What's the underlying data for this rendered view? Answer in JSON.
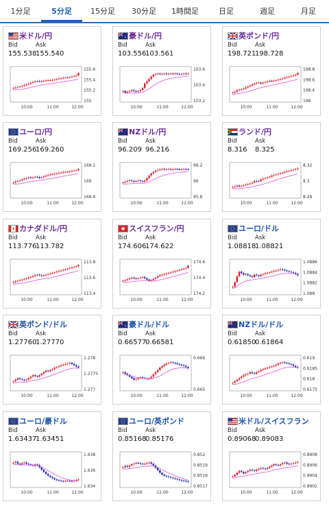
{
  "tabs": [
    "1分足",
    "5分足",
    "15分足",
    "30分足",
    "1時間足",
    "日足",
    "週足",
    "月足"
  ],
  "active_tab": 1,
  "labels": {
    "bid": "Bid",
    "ask": "Ask"
  },
  "colors": {
    "up": "#d9202a",
    "down": "#1c2aa8",
    "ma": "#e060e0",
    "pair_purple": "#6a2a9a",
    "pair_blue": "#1a55b0",
    "accent": "#1f5fae"
  },
  "cards": [
    {
      "pair": "米ドル/円",
      "pair_color": "purple",
      "flag": "us-flag",
      "bid": "155.538",
      "ask": "155.540",
      "y_ticks": [
        "155.6",
        "155.4",
        "155.2",
        "155"
      ],
      "x_ticks": [
        "10:00",
        "11:00",
        "12:00"
      ],
      "trend": [
        0.4,
        0.42,
        0.44,
        0.45,
        0.47,
        0.5,
        0.52,
        0.54,
        0.57,
        0.6,
        0.62,
        0.63,
        0.62,
        0.63,
        0.64,
        0.65,
        0.66,
        0.66,
        0.67,
        0.68,
        0.7,
        0.72,
        0.73,
        0.74,
        0.74,
        0.75,
        0.76,
        0.78,
        0.8,
        0.82,
        0.9
      ]
    },
    {
      "pair": "豪ドル/円",
      "pair_color": "purple",
      "flag": "au-flag",
      "bid": "103.556",
      "ask": "103.561",
      "y_ticks": [
        "103.6",
        "103.4",
        "103.2"
      ],
      "x_ticks": [
        "10:00",
        "11:00",
        "12:00"
      ],
      "trend": [
        0.3,
        0.25,
        0.28,
        0.3,
        0.33,
        0.3,
        0.28,
        0.3,
        0.34,
        0.4,
        0.55,
        0.62,
        0.7,
        0.78,
        0.84,
        0.86,
        0.88,
        0.86,
        0.87,
        0.88,
        0.86,
        0.87,
        0.88,
        0.87,
        0.88,
        0.87,
        0.86,
        0.87,
        0.88,
        0.87,
        0.88
      ]
    },
    {
      "pair": "英ポンド/円",
      "pair_color": "purple",
      "flag": "gb-flag",
      "bid": "198.721",
      "ask": "198.728",
      "y_ticks": [
        "198.8",
        "198.6",
        "198.4",
        "198"
      ],
      "x_ticks": [
        "10:00",
        "11:00",
        "12:00"
      ],
      "trend": [
        0.25,
        0.28,
        0.33,
        0.35,
        0.36,
        0.38,
        0.42,
        0.45,
        0.48,
        0.52,
        0.55,
        0.57,
        0.58,
        0.55,
        0.58,
        0.6,
        0.62,
        0.64,
        0.63,
        0.65,
        0.66,
        0.68,
        0.7,
        0.72,
        0.74,
        0.76,
        0.78,
        0.8,
        0.82,
        0.84,
        0.9
      ]
    },
    {
      "pair": "ユーロ/円",
      "pair_color": "purple",
      "flag": "eu-flag",
      "bid": "169.256",
      "ask": "169.260",
      "y_ticks": [
        "169.2",
        "169",
        "168.8"
      ],
      "x_ticks": [
        "10:00",
        "11:00",
        "12:00"
      ],
      "trend": [
        0.45,
        0.48,
        0.5,
        0.52,
        0.55,
        0.58,
        0.6,
        0.62,
        0.6,
        0.62,
        0.64,
        0.63,
        0.6,
        0.62,
        0.65,
        0.68,
        0.7,
        0.72,
        0.73,
        0.74,
        0.75,
        0.77,
        0.78,
        0.8,
        0.8,
        0.81,
        0.82,
        0.84,
        0.85,
        0.86,
        0.9
      ]
    },
    {
      "pair": "NZドル/円",
      "pair_color": "purple",
      "flag": "nz-flag",
      "bid": "96.209",
      "ask": "96.216",
      "y_ticks": [
        "96.2",
        "96",
        "95.8"
      ],
      "x_ticks": [
        "10:00",
        "11:00",
        "12:00"
      ],
      "trend": [
        0.45,
        0.48,
        0.5,
        0.52,
        0.5,
        0.48,
        0.5,
        0.52,
        0.5,
        0.48,
        0.52,
        0.6,
        0.68,
        0.75,
        0.8,
        0.84,
        0.86,
        0.88,
        0.9,
        0.88,
        0.89,
        0.9,
        0.88,
        0.89,
        0.9,
        0.89,
        0.88,
        0.89,
        0.9,
        0.89,
        0.88
      ]
    },
    {
      "pair": "ランド/円",
      "pair_color": "purple",
      "flag": "za-flag",
      "bid": "8.316",
      "ask": "8.325",
      "y_ticks": [
        "8.32",
        "8.3",
        "8.28"
      ],
      "x_ticks": [
        "10:00",
        "11:00",
        "12:00"
      ],
      "trend": [
        0.3,
        0.32,
        0.35,
        0.32,
        0.34,
        0.36,
        0.38,
        0.4,
        0.42,
        0.45,
        0.5,
        0.48,
        0.5,
        0.55,
        0.58,
        0.6,
        0.62,
        0.64,
        0.68,
        0.7,
        0.72,
        0.74,
        0.76,
        0.78,
        0.8,
        0.82,
        0.84,
        0.86,
        0.88,
        0.9,
        0.92
      ]
    },
    {
      "pair": "カナダドル/円",
      "pair_color": "purple",
      "flag": "ca-flag",
      "bid": "113.776",
      "ask": "113.782",
      "y_ticks": [
        "113.8",
        "113.6",
        "113.4"
      ],
      "x_ticks": [
        "10:00",
        "11:00",
        "12:00"
      ],
      "trend": [
        0.35,
        0.38,
        0.4,
        0.42,
        0.44,
        0.46,
        0.48,
        0.5,
        0.52,
        0.55,
        0.58,
        0.6,
        0.58,
        0.56,
        0.58,
        0.6,
        0.62,
        0.64,
        0.66,
        0.68,
        0.7,
        0.72,
        0.74,
        0.76,
        0.78,
        0.8,
        0.82,
        0.84,
        0.86,
        0.88,
        0.92
      ]
    },
    {
      "pair": "スイスフラン/円",
      "pair_color": "purple",
      "flag": "ch-flag",
      "bid": "174.606",
      "ask": "174.622",
      "y_ticks": [
        "174.6",
        "174.4",
        "174.2"
      ],
      "x_ticks": [
        "10:00",
        "11:00",
        "12:00"
      ],
      "trend": [
        0.4,
        0.42,
        0.45,
        0.48,
        0.5,
        0.48,
        0.46,
        0.48,
        0.5,
        0.52,
        0.48,
        0.44,
        0.4,
        0.42,
        0.46,
        0.5,
        0.55,
        0.58,
        0.6,
        0.62,
        0.64,
        0.66,
        0.68,
        0.7,
        0.72,
        0.74,
        0.76,
        0.78,
        0.8,
        0.82,
        0.9
      ]
    },
    {
      "pair": "ユーロ/ドル",
      "pair_color": "blue",
      "flag": "eu-flag",
      "bid": "1.08818",
      "ask": "1.08821",
      "y_ticks": [
        "1.0886",
        "1.0884",
        "1.0882",
        "1.088"
      ],
      "x_ticks": [
        "10:00",
        "11:00",
        "12:00"
      ],
      "trend": [
        0.2,
        0.35,
        0.55,
        0.7,
        0.65,
        0.6,
        0.62,
        0.58,
        0.55,
        0.52,
        0.6,
        0.58,
        0.55,
        0.6,
        0.62,
        0.65,
        0.66,
        0.68,
        0.7,
        0.72,
        0.74,
        0.76,
        0.78,
        0.76,
        0.74,
        0.72,
        0.7,
        0.68,
        0.66,
        0.62,
        0.58
      ]
    },
    {
      "pair": "英ポンド/ドル",
      "pair_color": "blue",
      "flag": "gb-flag",
      "bid": "1.27760",
      "ask": "1.27770",
      "y_ticks": [
        "1.278",
        "1.2775",
        "1.277"
      ],
      "x_ticks": [
        "10:00",
        "11:00",
        "12:00"
      ],
      "trend": [
        0.25,
        0.3,
        0.35,
        0.32,
        0.3,
        0.28,
        0.3,
        0.35,
        0.4,
        0.45,
        0.42,
        0.4,
        0.45,
        0.5,
        0.55,
        0.6,
        0.58,
        0.62,
        0.65,
        0.7,
        0.72,
        0.75,
        0.78,
        0.8,
        0.82,
        0.84,
        0.86,
        0.82,
        0.78,
        0.74,
        0.7
      ]
    },
    {
      "pair": "豪ドル/ドル",
      "pair_color": "blue",
      "flag": "au-flag",
      "bid": "0.66577",
      "ask": "0.66581",
      "y_ticks": [
        "0.666",
        "0.665"
      ],
      "x_ticks": [
        "10:00",
        "11:00",
        "12:00"
      ],
      "trend": [
        0.55,
        0.5,
        0.45,
        0.4,
        0.35,
        0.3,
        0.32,
        0.35,
        0.38,
        0.36,
        0.34,
        0.32,
        0.35,
        0.4,
        0.48,
        0.55,
        0.62,
        0.7,
        0.75,
        0.8,
        0.84,
        0.86,
        0.88,
        0.86,
        0.84,
        0.82,
        0.8,
        0.78,
        0.76,
        0.72,
        0.68
      ]
    },
    {
      "pair": "NZドル/ドル",
      "pair_color": "blue",
      "flag": "nz-flag",
      "bid": "0.61850",
      "ask": "0.61864",
      "y_ticks": [
        "0.619",
        "0.6185",
        "0.618",
        "0.6175"
      ],
      "x_ticks": [
        "10:00",
        "11:00",
        "12:00"
      ],
      "trend": [
        0.2,
        0.25,
        0.3,
        0.35,
        0.4,
        0.45,
        0.48,
        0.5,
        0.55,
        0.52,
        0.5,
        0.55,
        0.58,
        0.62,
        0.65,
        0.68,
        0.7,
        0.72,
        0.74,
        0.76,
        0.8,
        0.84,
        0.86,
        0.88,
        0.86,
        0.84,
        0.82,
        0.8,
        0.76,
        0.72,
        0.7
      ]
    },
    {
      "pair": "ユーロ/豪ドル",
      "pair_color": "blue",
      "flag": "eu-flag",
      "bid": "1.63437",
      "ask": "1.63451",
      "y_ticks": [
        "1.638",
        "1.636",
        "1.634"
      ],
      "x_ticks": [
        "10:00",
        "11:00",
        "12:00"
      ],
      "trend": [
        0.75,
        0.78,
        0.72,
        0.7,
        0.74,
        0.76,
        0.72,
        0.7,
        0.68,
        0.66,
        0.7,
        0.68,
        0.6,
        0.52,
        0.45,
        0.38,
        0.32,
        0.28,
        0.24,
        0.2,
        0.18,
        0.16,
        0.15,
        0.14,
        0.15,
        0.16,
        0.15,
        0.14,
        0.16,
        0.18,
        0.2
      ]
    },
    {
      "pair": "ユーロ/英ポンド",
      "pair_color": "blue",
      "flag": "eu-flag",
      "bid": "0.85168",
      "ask": "0.85176",
      "y_ticks": [
        "0.852",
        "0.8519",
        "0.8518",
        "0.8517"
      ],
      "x_ticks": [
        "10:00",
        "11:00",
        "12:00"
      ],
      "trend": [
        0.6,
        0.65,
        0.62,
        0.66,
        0.7,
        0.72,
        0.75,
        0.74,
        0.72,
        0.7,
        0.72,
        0.74,
        0.76,
        0.72,
        0.66,
        0.58,
        0.5,
        0.42,
        0.36,
        0.32,
        0.3,
        0.28,
        0.26,
        0.24,
        0.22,
        0.2,
        0.18,
        0.16,
        0.15,
        0.14,
        0.12
      ]
    },
    {
      "pair": "米ドル/スイスフラン",
      "pair_color": "blue",
      "flag": "us-flag",
      "bid": "0.89068",
      "ask": "0.89083",
      "y_ticks": [
        "0.8908",
        "0.8906",
        "0.8904",
        "0.8902"
      ],
      "x_ticks": [
        "10:00",
        "11:00",
        "12:00"
      ],
      "trend": [
        0.3,
        0.35,
        0.42,
        0.48,
        0.45,
        0.4,
        0.44,
        0.48,
        0.52,
        0.5,
        0.48,
        0.52,
        0.55,
        0.58,
        0.56,
        0.54,
        0.58,
        0.62,
        0.66,
        0.7,
        0.68,
        0.66,
        0.7,
        0.74,
        0.76,
        0.72,
        0.7,
        0.72,
        0.74,
        0.76,
        0.78
      ]
    }
  ]
}
